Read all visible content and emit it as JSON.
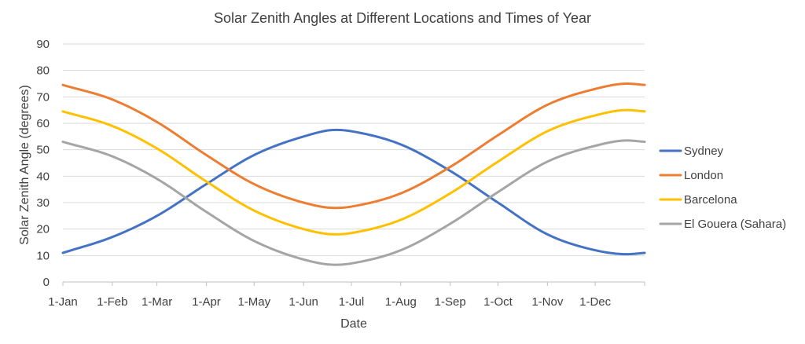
{
  "chart_data": {
    "type": "line",
    "title": "Solar Zenith Angles at Different  Locations and Times of Year",
    "xlabel": "Date",
    "ylabel": "Solar Zenith Angle (degrees)",
    "ylim": [
      0,
      90
    ],
    "yticks": [
      0,
      10,
      20,
      30,
      40,
      50,
      60,
      70,
      80,
      90
    ],
    "xlim": [
      1,
      366
    ],
    "x_ticks": [
      {
        "label": "1-Jan",
        "day": 1
      },
      {
        "label": "1-Feb",
        "day": 32
      },
      {
        "label": "1-Mar",
        "day": 60
      },
      {
        "label": "1-Apr",
        "day": 91
      },
      {
        "label": "1-May",
        "day": 121
      },
      {
        "label": "1-Jun",
        "day": 152
      },
      {
        "label": "1-Jul",
        "day": 182
      },
      {
        "label": "1-Aug",
        "day": 213
      },
      {
        "label": "1-Sep",
        "day": 244
      },
      {
        "label": "1-Oct",
        "day": 274
      },
      {
        "label": "1-Nov",
        "day": 305
      },
      {
        "label": "1-Dec",
        "day": 335
      }
    ],
    "grid": true,
    "legend_position": "right",
    "x_unit": "day of year",
    "series": [
      {
        "name": "Sydney",
        "color": "#4472c4",
        "points": [
          [
            1,
            11
          ],
          [
            32,
            17
          ],
          [
            60,
            25
          ],
          [
            91,
            37
          ],
          [
            121,
            48
          ],
          [
            152,
            55
          ],
          [
            172,
            57.5
          ],
          [
            182,
            57
          ],
          [
            213,
            52
          ],
          [
            244,
            42
          ],
          [
            274,
            30
          ],
          [
            305,
            18
          ],
          [
            335,
            12
          ],
          [
            355,
            10.5
          ],
          [
            366,
            11
          ]
        ]
      },
      {
        "name": "London",
        "color": "#ed7d31",
        "points": [
          [
            1,
            74.5
          ],
          [
            32,
            69
          ],
          [
            60,
            60.5
          ],
          [
            91,
            48
          ],
          [
            121,
            37
          ],
          [
            152,
            30
          ],
          [
            172,
            28
          ],
          [
            182,
            28.5
          ],
          [
            213,
            33.5
          ],
          [
            244,
            43.5
          ],
          [
            274,
            55.5
          ],
          [
            305,
            67
          ],
          [
            335,
            73
          ],
          [
            355,
            75
          ],
          [
            366,
            74.5
          ]
        ]
      },
      {
        "name": "Barcelona",
        "color": "#ffc000",
        "points": [
          [
            1,
            64.5
          ],
          [
            32,
            59
          ],
          [
            60,
            50.5
          ],
          [
            91,
            38
          ],
          [
            121,
            27
          ],
          [
            152,
            20
          ],
          [
            172,
            18
          ],
          [
            182,
            18.5
          ],
          [
            213,
            23.5
          ],
          [
            244,
            33.5
          ],
          [
            274,
            45.5
          ],
          [
            305,
            57
          ],
          [
            335,
            63
          ],
          [
            355,
            65
          ],
          [
            366,
            64.5
          ]
        ]
      },
      {
        "name": "El Gouera (Sahara)",
        "color": "#a5a5a5",
        "points": [
          [
            1,
            53
          ],
          [
            32,
            47.5
          ],
          [
            60,
            39
          ],
          [
            91,
            26.5
          ],
          [
            121,
            15.5
          ],
          [
            152,
            8.5
          ],
          [
            172,
            6.5
          ],
          [
            182,
            7
          ],
          [
            213,
            12
          ],
          [
            244,
            22
          ],
          [
            274,
            34
          ],
          [
            305,
            45.5
          ],
          [
            335,
            51.5
          ],
          [
            355,
            53.5
          ],
          [
            366,
            53
          ]
        ]
      }
    ]
  }
}
